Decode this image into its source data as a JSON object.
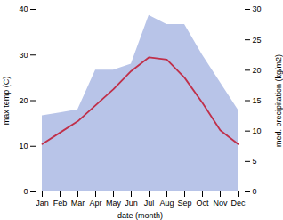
{
  "chart_data": {
    "type": "line",
    "categories": [
      "Jan",
      "Feb",
      "Mar",
      "Apr",
      "May",
      "Jun",
      "Jul",
      "Aug",
      "Sep",
      "Oct",
      "Nov",
      "Dec"
    ],
    "xlabel": "date (month)",
    "ylabel": "max temp (C)",
    "y2label": "med. precipitation (kg/m2)",
    "ylim": [
      0,
      40
    ],
    "yticks": [
      0,
      10,
      20,
      30,
      40
    ],
    "y2lim": [
      0,
      30
    ],
    "y2ticks": [
      0,
      5,
      10,
      15,
      20,
      25,
      30
    ],
    "series": [
      {
        "type": "area",
        "axis": "y2",
        "color": "#b8c4e8",
        "values": [
          12.5,
          13.0,
          13.5,
          20.0,
          20.0,
          21.0,
          29.0,
          27.5,
          27.5,
          22.5,
          18.0,
          13.5
        ]
      },
      {
        "type": "line",
        "color": "#c0304a",
        "values": [
          10.5,
          13.0,
          15.5,
          19.0,
          22.5,
          26.5,
          29.5,
          29.0,
          25.0,
          19.5,
          13.5,
          10.5
        ]
      }
    ]
  }
}
